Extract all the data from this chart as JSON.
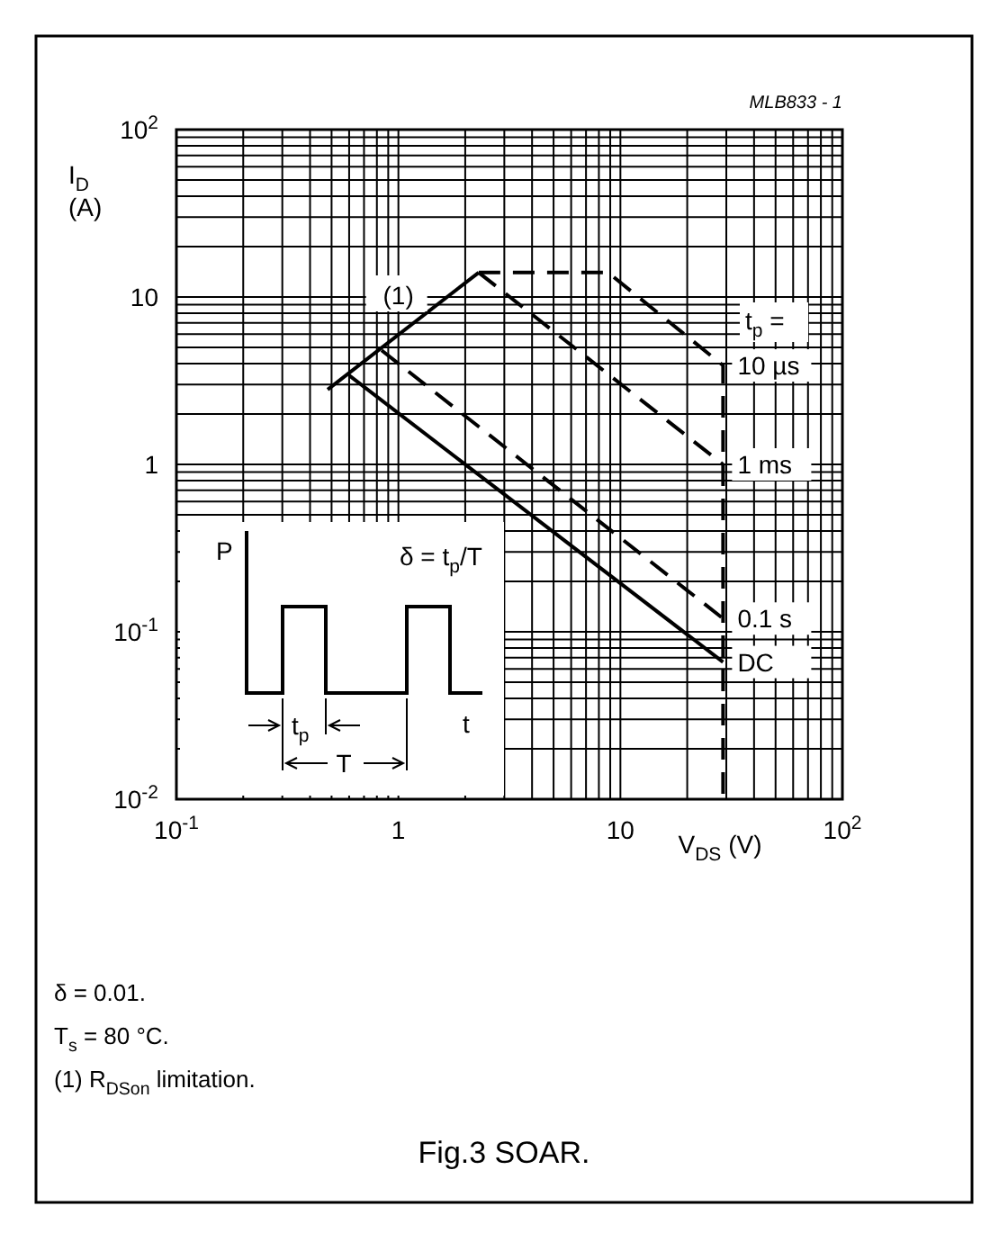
{
  "chart_data": {
    "type": "line",
    "title": "Fig.3  SOAR.",
    "xlabel": "V$_{DS}$ (V)",
    "ylabel": "I$_{D}$\n(A)",
    "log": "xy",
    "grid": true,
    "xlim": [
      0.1,
      100
    ],
    "ylim": [
      0.01,
      100
    ],
    "xticks": [
      {
        "value": 0.1,
        "label": "10$^{-1}$"
      },
      1,
      10,
      {
        "value": 100,
        "label": "10$^{2}$"
      }
    ],
    "yticks": [
      {
        "value": 0.01,
        "label": "10$^{-2}$"
      },
      {
        "value": 0.1,
        "label": "10$^{-1}$"
      },
      1,
      10,
      {
        "value": 100,
        "label": "10$^{2}$"
      }
    ],
    "series": [
      {
        "color": "#000000",
        "line_style": "solid",
        "x": [
          0.48,
          2.3
        ],
        "values": [
          2.8,
          14
        ]
      },
      {
        "name": "10 µs",
        "color": "#000000",
        "line_style": "dashed",
        "x": [
          2.3,
          8.8,
          29,
          29
        ],
        "values": [
          14,
          14,
          3.9,
          0.01
        ]
      },
      {
        "name": "1 ms",
        "color": "#000000",
        "line_style": "dashed",
        "x": [
          2.3,
          29
        ],
        "values": [
          14,
          1.0
        ]
      },
      {
        "name": "0.1 s",
        "color": "#000000",
        "line_style": "dashed",
        "x": [
          0.84,
          29
        ],
        "values": [
          4.8,
          0.12
        ]
      },
      {
        "name": "DC",
        "color": "#000000",
        "line_style": "solid",
        "x": [
          0.6,
          29
        ],
        "values": [
          3.4,
          0.066
        ]
      }
    ],
    "annotations": [
      "MLB833 - 1",
      {
        "text": "(1)",
        "x": 1.0,
        "y": 10
      },
      "t$_{p}$ =",
      "P",
      "δ = t$_{p}$/T",
      "t$_{p}$",
      "T",
      "t",
      "δ = 0.01.",
      "T$_{s}$ = 80 °C.",
      "(1)   R$_{DSon}$ limitation."
    ]
  }
}
